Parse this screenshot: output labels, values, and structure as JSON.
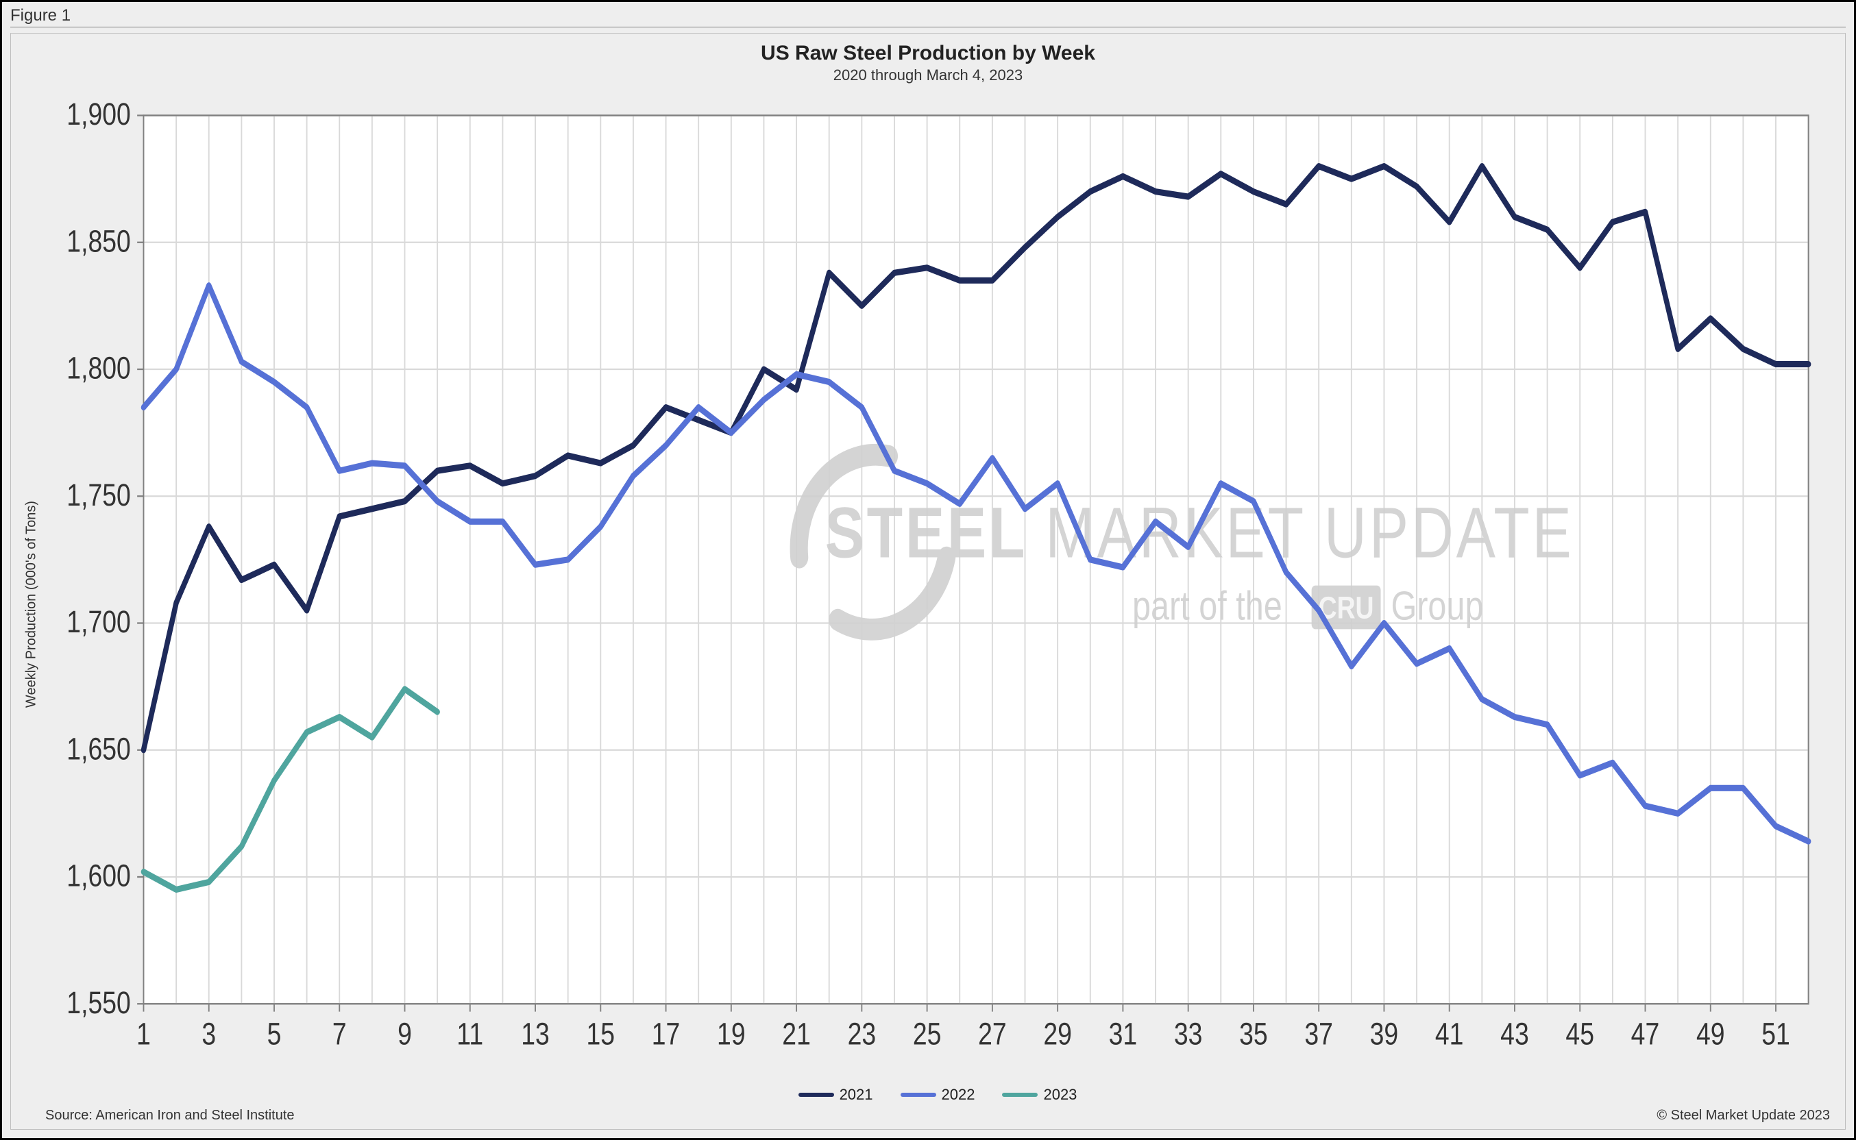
{
  "figure_label": "Figure 1",
  "chart": {
    "type": "line",
    "title": "US Raw Steel Production by Week",
    "subtitle": "2020 through March 4, 2023",
    "title_fontsize": 30,
    "subtitle_fontsize": 22,
    "y_axis_label": "Weekly Production (000's of Tons)",
    "label_fontsize": 20,
    "tick_fontsize": 20,
    "background_color": "#eeeeee",
    "plot_background_color": "#ffffff",
    "grid_color": "#d9d9d9",
    "axis_color": "#808080",
    "line_width": 4,
    "ylim": [
      1550,
      1900
    ],
    "ytick_step": 50,
    "yticks": [
      1550,
      1600,
      1650,
      1700,
      1750,
      1800,
      1850,
      1900
    ],
    "xlim": [
      1,
      52
    ],
    "xtick_step": 2,
    "xticks": [
      1,
      3,
      5,
      7,
      9,
      11,
      13,
      15,
      17,
      19,
      21,
      23,
      25,
      27,
      29,
      31,
      33,
      35,
      37,
      39,
      41,
      43,
      45,
      47,
      49,
      51
    ],
    "x_minor_grid_every": 1,
    "series": [
      {
        "name": "2021",
        "color": "#1e2a5a",
        "x": [
          1,
          2,
          3,
          4,
          5,
          6,
          7,
          8,
          9,
          10,
          11,
          12,
          13,
          14,
          15,
          16,
          17,
          18,
          19,
          20,
          21,
          22,
          23,
          24,
          25,
          26,
          27,
          28,
          29,
          30,
          31,
          32,
          33,
          34,
          35,
          36,
          37,
          38,
          39,
          40,
          41,
          42,
          43,
          44,
          45,
          46,
          47,
          48,
          49,
          50,
          51,
          52
        ],
        "y": [
          1650,
          1708,
          1738,
          1717,
          1723,
          1705,
          1742,
          1745,
          1748,
          1760,
          1762,
          1755,
          1758,
          1766,
          1763,
          1770,
          1785,
          1780,
          1775,
          1800,
          1792,
          1838,
          1825,
          1838,
          1840,
          1835,
          1835,
          1848,
          1860,
          1870,
          1876,
          1870,
          1868,
          1877,
          1870,
          1865,
          1880,
          1875,
          1880,
          1872,
          1858,
          1880,
          1860,
          1855,
          1840,
          1858,
          1862,
          1808,
          1820,
          1808,
          1802,
          1802
        ]
      },
      {
        "name": "2022",
        "color": "#5671d6",
        "x": [
          1,
          2,
          3,
          4,
          5,
          6,
          7,
          8,
          9,
          10,
          11,
          12,
          13,
          14,
          15,
          16,
          17,
          18,
          19,
          20,
          21,
          22,
          23,
          24,
          25,
          26,
          27,
          28,
          29,
          30,
          31,
          32,
          33,
          34,
          35,
          36,
          37,
          38,
          39,
          40,
          41,
          42,
          43,
          44,
          45,
          46,
          47,
          48,
          49,
          50,
          51,
          52
        ],
        "y": [
          1785,
          1800,
          1833,
          1803,
          1795,
          1785,
          1760,
          1763,
          1762,
          1748,
          1740,
          1740,
          1723,
          1725,
          1738,
          1758,
          1770,
          1785,
          1775,
          1788,
          1798,
          1795,
          1785,
          1760,
          1755,
          1747,
          1765,
          1745,
          1755,
          1725,
          1722,
          1740,
          1730,
          1755,
          1748,
          1720,
          1705,
          1683,
          1700,
          1684,
          1690,
          1670,
          1663,
          1660,
          1640,
          1645,
          1628,
          1625,
          1635,
          1635,
          1620,
          1614
        ]
      },
      {
        "name": "2023",
        "color": "#4fa59e",
        "x": [
          1,
          2,
          3,
          4,
          5,
          6,
          7,
          8,
          9,
          10
        ],
        "y": [
          1602,
          1595,
          1598,
          1612,
          1638,
          1657,
          1663,
          1655,
          1674,
          1665
        ]
      }
    ],
    "watermark": {
      "text_main_1": "STEEL",
      "text_main_2": "MARKET",
      "text_main_3": "UPDATE",
      "sub_prefix": "part of the",
      "sub_badge": "CRU",
      "sub_suffix": "Group",
      "color": "#d0d0d0",
      "fontsize_main": 46,
      "fontsize_sub": 26
    }
  },
  "source_text": "Source: American Iron and Steel Institute",
  "copyright_text": "© Steel Market Update 2023"
}
